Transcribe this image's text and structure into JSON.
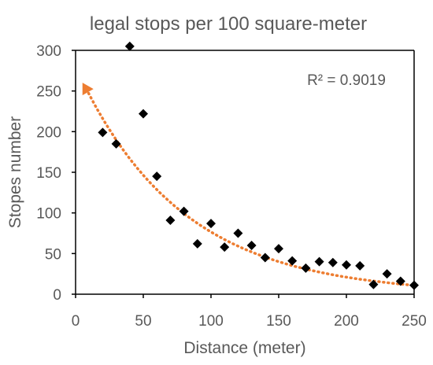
{
  "chart_data": {
    "type": "scatter",
    "title": "legal stops per 100 square-meter",
    "xlabel": "Distance (meter)",
    "ylabel": "Stopes number",
    "xlim": [
      0,
      250
    ],
    "ylim": [
      0,
      300
    ],
    "xticks": [
      0,
      50,
      100,
      150,
      200,
      250
    ],
    "yticks": [
      0,
      50,
      100,
      150,
      200,
      250,
      300
    ],
    "grid": false,
    "legend": "none",
    "annotation": "R² = 0.9019",
    "colors": {
      "points": "#000000",
      "trendline": "#ED7D31",
      "axes": "#595959"
    },
    "points": [
      {
        "x": 20,
        "y": 199
      },
      {
        "x": 30,
        "y": 185
      },
      {
        "x": 40,
        "y": 305
      },
      {
        "x": 50,
        "y": 222
      },
      {
        "x": 60,
        "y": 145
      },
      {
        "x": 70,
        "y": 91
      },
      {
        "x": 80,
        "y": 102
      },
      {
        "x": 90,
        "y": 62
      },
      {
        "x": 100,
        "y": 87
      },
      {
        "x": 110,
        "y": 58
      },
      {
        "x": 120,
        "y": 75
      },
      {
        "x": 130,
        "y": 60
      },
      {
        "x": 140,
        "y": 45
      },
      {
        "x": 150,
        "y": 56
      },
      {
        "x": 160,
        "y": 41
      },
      {
        "x": 170,
        "y": 32
      },
      {
        "x": 180,
        "y": 40
      },
      {
        "x": 190,
        "y": 39
      },
      {
        "x": 200,
        "y": 36
      },
      {
        "x": 210,
        "y": 35
      },
      {
        "x": 220,
        "y": 12
      },
      {
        "x": 230,
        "y": 25
      },
      {
        "x": 240,
        "y": 16
      },
      {
        "x": 250,
        "y": 11
      }
    ],
    "trendline": {
      "type": "exponential",
      "a": 280,
      "b": -0.01296,
      "x_range": [
        8,
        250
      ],
      "marker_at_start": "triangle"
    }
  }
}
